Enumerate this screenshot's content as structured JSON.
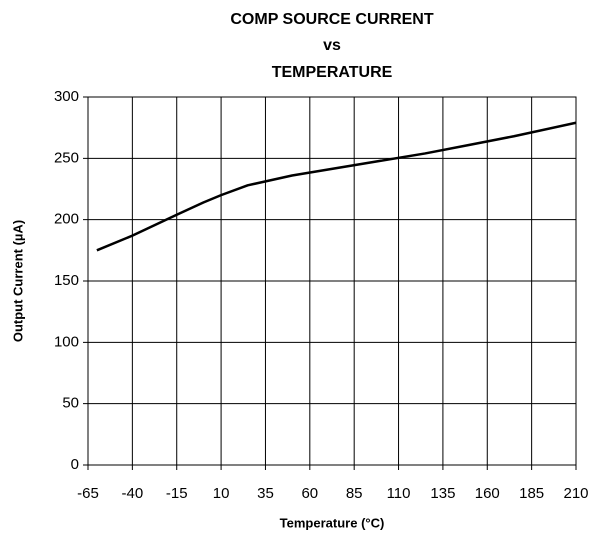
{
  "chart_data": {
    "type": "line",
    "title": [
      "COMP SOURCE CURRENT",
      "vs",
      "TEMPERATURE"
    ],
    "x_label": "Temperature (°C)",
    "y_label": "Output Current (µA)",
    "x": [
      -60,
      -40,
      -15,
      0,
      10,
      25,
      50,
      75,
      100,
      125,
      150,
      175,
      210
    ],
    "series": [
      {
        "name": "Output Current",
        "color": "#000000",
        "values": [
          175,
          187,
          204,
          214,
          220,
          228,
          236,
          242,
          248,
          254,
          261,
          268,
          279
        ]
      }
    ],
    "xlim": [
      -65,
      210
    ],
    "xticks": [
      -65,
      -40,
      -15,
      10,
      35,
      60,
      85,
      110,
      135,
      160,
      185,
      210
    ],
    "ylim": [
      0,
      300
    ],
    "yticks": [
      0,
      50,
      100,
      150,
      200,
      250,
      300
    ],
    "grid": true
  }
}
